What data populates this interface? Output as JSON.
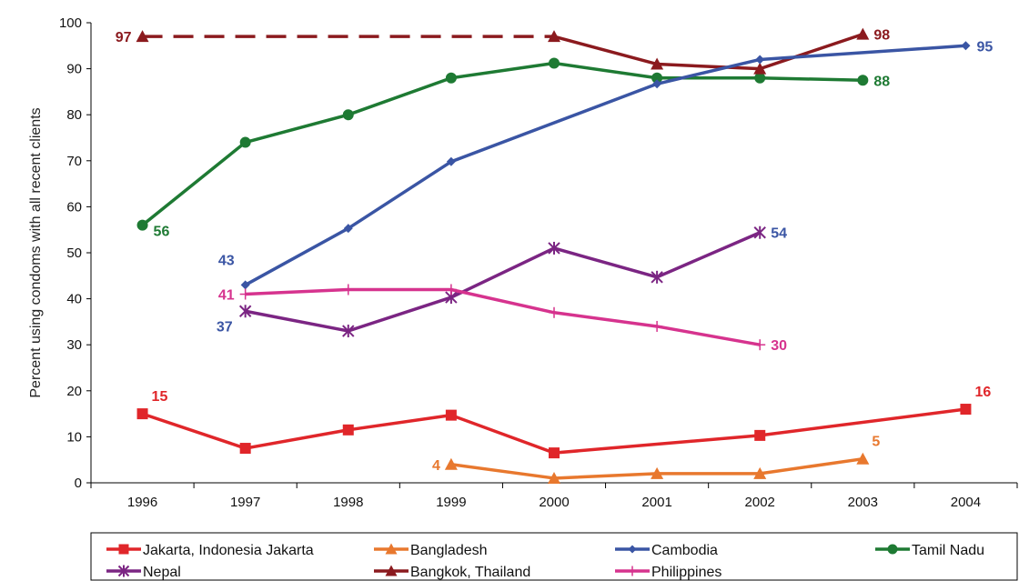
{
  "chart_data": {
    "type": "line",
    "title": "",
    "xlabel": "",
    "ylabel": "Percent using condoms with all recent clients",
    "x": [
      1996,
      1997,
      1998,
      1999,
      2000,
      2001,
      2002,
      2003,
      2004
    ],
    "x_ticks": [
      "1996",
      "1997",
      "1998",
      "1999",
      "2000",
      "2001",
      "2002",
      "2003",
      "2004"
    ],
    "ylim": [
      0,
      100
    ],
    "y_ticks": [
      "0",
      "10",
      "20",
      "30",
      "40",
      "50",
      "60",
      "70",
      "80",
      "90",
      "100"
    ],
    "grid": false,
    "legend_position": "bottom",
    "series": [
      {
        "name": "Jakarta, Indonesia Jakarta",
        "color": "#e0262a",
        "marker": "square",
        "dash": false,
        "points": [
          [
            1996,
            15
          ],
          [
            1997,
            7.5
          ],
          [
            1998,
            11.5
          ],
          [
            1999,
            14.7
          ],
          [
            2000,
            6.5
          ],
          [
            2002,
            10.3
          ],
          [
            2004,
            16
          ]
        ],
        "labels": [
          {
            "x": 1996,
            "text": "15",
            "pos": "above-right"
          },
          {
            "x": 2004,
            "text": "16",
            "pos": "above-right"
          }
        ]
      },
      {
        "name": "Bangladesh",
        "color": "#e8782e",
        "marker": "triangle",
        "dash": false,
        "points": [
          [
            1999,
            4
          ],
          [
            2000,
            1
          ],
          [
            2001,
            2
          ],
          [
            2002,
            2
          ],
          [
            2003,
            5.2
          ]
        ],
        "labels": [
          {
            "x": 1999,
            "text": "4",
            "pos": "left"
          },
          {
            "x": 2003,
            "text": "5",
            "pos": "above-right"
          }
        ]
      },
      {
        "name": "Cambodia",
        "color": "#3a55a4",
        "marker": "diamond",
        "dash": false,
        "points": [
          [
            1997,
            43
          ],
          [
            1998,
            55.3
          ],
          [
            1999,
            69.8
          ],
          [
            2001,
            86.7
          ],
          [
            2002,
            92
          ],
          [
            2004,
            95
          ]
        ],
        "labels": [
          {
            "x": 1997,
            "text": "43",
            "pos": "above-left"
          },
          {
            "x": 2004,
            "text": "95",
            "pos": "right"
          }
        ]
      },
      {
        "name": "Tamil Nadu",
        "color": "#1e7a33",
        "marker": "circle",
        "dash": false,
        "points": [
          [
            1996,
            56
          ],
          [
            1997,
            74
          ],
          [
            1998,
            80
          ],
          [
            1999,
            88
          ],
          [
            2000,
            91.2
          ],
          [
            2001,
            88
          ],
          [
            2002,
            88
          ],
          [
            2003,
            87.5
          ]
        ],
        "labels": [
          {
            "x": 1996,
            "text": "56",
            "pos": "below-right"
          },
          {
            "x": 2003,
            "text": "88",
            "pos": "right"
          }
        ]
      },
      {
        "name": "Nepal",
        "color": "#7b2583",
        "marker": "star",
        "dash": false,
        "points": [
          [
            1997,
            37.3
          ],
          [
            1998,
            33
          ],
          [
            1999,
            40.3
          ],
          [
            2000,
            51
          ],
          [
            2001,
            44.7
          ],
          [
            2002,
            54.4
          ]
        ],
        "labels": [
          {
            "x": 1997,
            "text": "37",
            "pos": "below-left"
          },
          {
            "x": 2002,
            "text": "54",
            "pos": "right"
          }
        ]
      },
      {
        "name": "Bangkok, Thailand",
        "color": "#8b1a1e",
        "marker": "triangle",
        "dash": true,
        "points": [
          [
            1996,
            97
          ],
          [
            2000,
            97
          ],
          [
            2001,
            91
          ],
          [
            2002,
            90
          ],
          [
            2003,
            97.5
          ]
        ],
        "solid_from_index": 1,
        "labels": [
          {
            "x": 1996,
            "text": "97",
            "pos": "left"
          },
          {
            "x": 2003,
            "text": "98",
            "pos": "right"
          }
        ]
      },
      {
        "name": "Philippines",
        "color": "#d6338e",
        "marker": "plus",
        "dash": false,
        "points": [
          [
            1997,
            41
          ],
          [
            1998,
            42
          ],
          [
            1999,
            42
          ],
          [
            2000,
            37
          ],
          [
            2001,
            34
          ],
          [
            2002,
            30
          ]
        ],
        "labels": [
          {
            "x": 1997,
            "text": "41",
            "pos": "left"
          },
          {
            "x": 2002,
            "text": "30",
            "pos": "right"
          }
        ]
      }
    ],
    "label_colors": {
      "Jakarta, Indonesia Jakarta": "#e0262a",
      "Bangladesh": "#e8782e",
      "Cambodia": "#3a55a4",
      "Tamil Nadu": "#1e7a33",
      "Nepal": "#3a55a4",
      "Bangkok, Thailand": "#8b1a1e",
      "Philippines": "#d6338e"
    }
  }
}
